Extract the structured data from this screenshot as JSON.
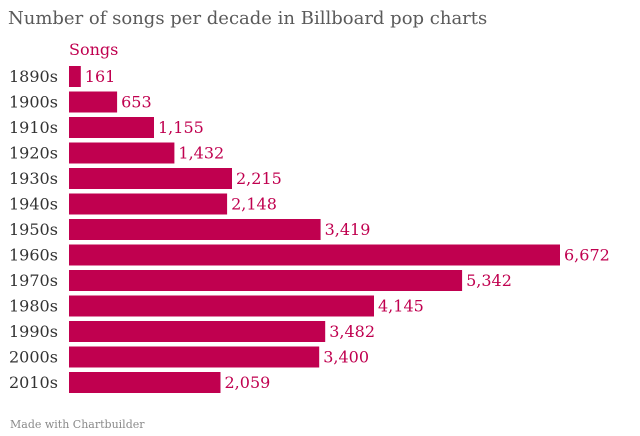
{
  "header": {
    "title": "Number of songs per decade in Billboard pop charts",
    "series_label": "Songs"
  },
  "footer": {
    "credit": "Made with Chartbuilder"
  },
  "colors": {
    "bar": "#c0004f",
    "value_text": "#c0004f",
    "category_text": "#333333"
  },
  "chart_data": {
    "type": "bar",
    "orientation": "horizontal",
    "title": "Number of songs per decade in Billboard pop charts",
    "xlabel": "",
    "ylabel": "",
    "series_name": "Songs",
    "categories": [
      "1890s",
      "1900s",
      "1910s",
      "1920s",
      "1930s",
      "1940s",
      "1950s",
      "1960s",
      "1970s",
      "1980s",
      "1990s",
      "2000s",
      "2010s"
    ],
    "values": [
      161,
      653,
      1155,
      1432,
      2215,
      2148,
      3419,
      6672,
      5342,
      4145,
      3482,
      3400,
      2059
    ],
    "value_labels": [
      "161",
      "653",
      "1,155",
      "1,432",
      "2,215",
      "2,148",
      "3,419",
      "6,672",
      "5,342",
      "4,145",
      "3,482",
      "3,400",
      "2,059"
    ],
    "xlim": [
      0,
      6672
    ],
    "grid": false,
    "legend": "none"
  }
}
